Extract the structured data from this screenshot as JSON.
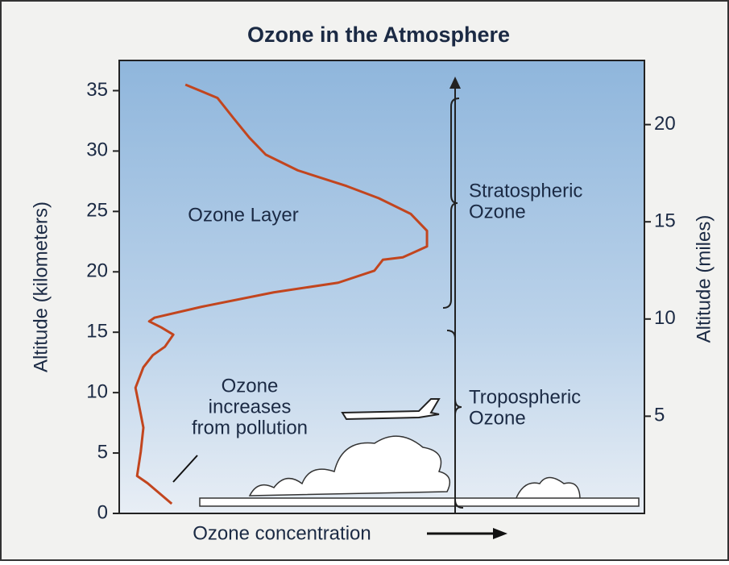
{
  "chart_data": {
    "type": "line",
    "title": "Ozone in the Atmosphere",
    "xlabel": "Ozone concentration",
    "ylabel": "Altitude (kilometers)",
    "y2label": "Altitude (miles)",
    "x": [
      10.0,
      5.4,
      3.4,
      4.1,
      4.6,
      3.7,
      3.1,
      4.6,
      6.4,
      8.7,
      10.3,
      8.0,
      5.7,
      6.7,
      15.6,
      29.4,
      41.7,
      48.6,
      50.2,
      54.0,
      58.6,
      58.6,
      55.5,
      49.4,
      43.3,
      34.0,
      27.9,
      24.8,
      21.8,
      18.7,
      12.6
    ],
    "series": [
      {
        "color": "#c2451e",
        "values": [
          0.8,
          2.5,
          3.1,
          5.1,
          7.1,
          9.1,
          10.4,
          12.1,
          13.1,
          13.8,
          14.8,
          15.4,
          15.9,
          16.2,
          17.1,
          18.3,
          19.1,
          20.1,
          21.0,
          21.2,
          22.1,
          23.4,
          24.8,
          26.1,
          27.1,
          28.4,
          29.7,
          31.1,
          32.7,
          34.4,
          35.5
        ]
      }
    ],
    "xlim": [
      0,
      100
    ],
    "ylim": [
      0,
      37.5
    ],
    "yticks": [
      0,
      5,
      10,
      15,
      20,
      25,
      30,
      35
    ],
    "y2lim": [
      0,
      23.3
    ],
    "y2ticks": [
      5,
      10,
      15,
      20
    ],
    "annotations": {
      "ozone_layer": "Ozone Layer",
      "pollution": [
        "Ozone",
        "increases",
        "from pollution"
      ],
      "stratospheric": [
        "Stratospheric",
        "Ozone"
      ],
      "tropospheric": [
        "Tropospheric",
        "Ozone"
      ]
    }
  }
}
